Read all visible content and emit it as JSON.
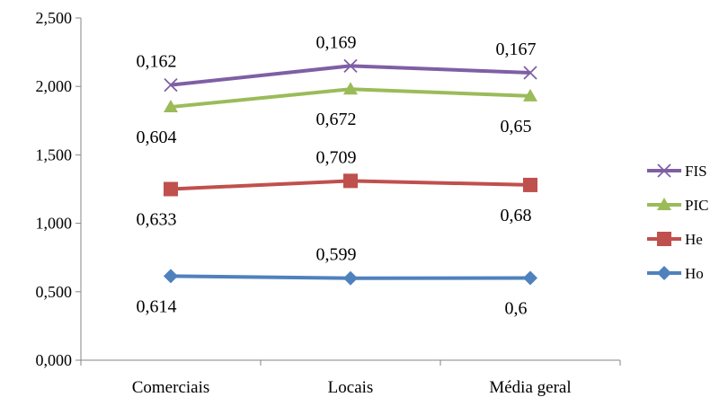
{
  "chart_data": {
    "type": "line",
    "title": "",
    "xlabel": "",
    "ylabel": "",
    "categories": [
      "Comerciais",
      "Locais",
      "Média geral"
    ],
    "ylim": [
      0,
      2.5
    ],
    "y_ticks": [
      0,
      0.5,
      1.0,
      1.5,
      2.0,
      2.5
    ],
    "y_tick_labels": [
      "0,000",
      "0,500",
      "1,000",
      "1,500",
      "2,000",
      "2,500"
    ],
    "grid": false,
    "legend_position": "right",
    "series": [
      {
        "name": "FIS",
        "color": "#7f5fa4",
        "marker": "x",
        "values": [
          2.01,
          2.15,
          2.1
        ],
        "data_labels": [
          "0,162",
          "0,169",
          "0,167"
        ]
      },
      {
        "name": "PIC",
        "color": "#9bbb59",
        "marker": "triangle",
        "values": [
          1.85,
          1.98,
          1.93
        ],
        "data_labels": [
          "0,604",
          "0,672",
          "0,65"
        ]
      },
      {
        "name": "He",
        "color": "#c0504d",
        "marker": "square",
        "values": [
          1.25,
          1.31,
          1.28
        ],
        "data_labels": [
          "0,633",
          "0,709",
          "0,68"
        ]
      },
      {
        "name": "Ho",
        "color": "#4f81bd",
        "marker": "diamond",
        "values": [
          0.614,
          0.599,
          0.6
        ],
        "data_labels": [
          "0,614",
          "0,599",
          "0,6"
        ]
      }
    ]
  }
}
